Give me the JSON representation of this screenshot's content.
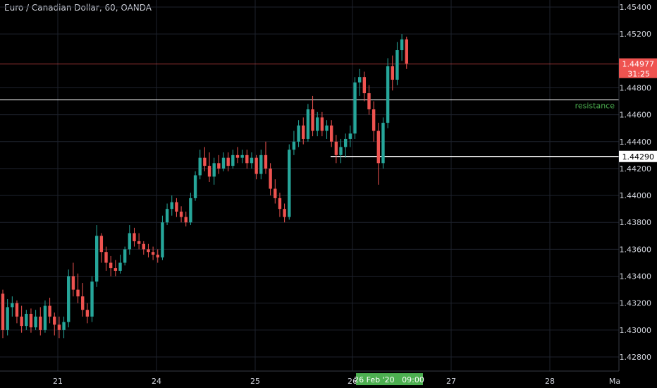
{
  "title": "Euro / Canadian Dollar, 60, OANDA",
  "current_price_label": "1.44977",
  "countdown_label": "31:25",
  "crosshair_price_label": "1.44290",
  "crosshair_time_label": "26 Feb '20   09:00",
  "resistance_label": "resistance",
  "colors": {
    "up": "#26a69a",
    "down": "#ef5350",
    "grid": "#1e222d",
    "price_line": "#ef5350",
    "crosshair_time_bg": "#4caf50"
  },
  "chart_data": {
    "type": "candlestick",
    "y_ticks": [
      "1.45400",
      "1.45200",
      "1.44800",
      "1.44600",
      "1.44400",
      "1.44200",
      "1.44000",
      "1.43800",
      "1.43600",
      "1.43400",
      "1.43200",
      "1.43000",
      "1.42800"
    ],
    "x_ticks": [
      "21",
      "24",
      "25",
      "26",
      "27",
      "28",
      "Ma"
    ],
    "ylim": [
      1.4272,
      1.4551
    ],
    "resistance_level": 1.4471,
    "current_price": 1.44977,
    "crosshair_price": 1.4429,
    "grid": true,
    "candles": [
      [
        1.4327,
        1.433,
        1.4294,
        1.43
      ],
      [
        1.43,
        1.4323,
        1.4296,
        1.4317
      ],
      [
        1.4317,
        1.4325,
        1.431,
        1.432
      ],
      [
        1.432,
        1.4322,
        1.4305,
        1.431
      ],
      [
        1.431,
        1.4318,
        1.4298,
        1.4303
      ],
      [
        1.4303,
        1.4315,
        1.43,
        1.4312
      ],
      [
        1.4312,
        1.4316,
        1.4298,
        1.4302
      ],
      [
        1.4302,
        1.4315,
        1.43,
        1.431
      ],
      [
        1.431,
        1.4317,
        1.4296,
        1.43
      ],
      [
        1.43,
        1.4322,
        1.4298,
        1.4318
      ],
      [
        1.4318,
        1.4324,
        1.4305,
        1.431
      ],
      [
        1.431,
        1.4313,
        1.4296,
        1.4304
      ],
      [
        1.4304,
        1.431,
        1.4294,
        1.43
      ],
      [
        1.43,
        1.431,
        1.4294,
        1.4306
      ],
      [
        1.4306,
        1.4345,
        1.4302,
        1.434
      ],
      [
        1.434,
        1.435,
        1.4325,
        1.433
      ],
      [
        1.433,
        1.4342,
        1.432,
        1.4325
      ],
      [
        1.4325,
        1.4335,
        1.431,
        1.4315
      ],
      [
        1.4315,
        1.432,
        1.4305,
        1.431
      ],
      [
        1.431,
        1.434,
        1.4306,
        1.4336
      ],
      [
        1.4336,
        1.4378,
        1.4332,
        1.437
      ],
      [
        1.437,
        1.4372,
        1.435,
        1.4358
      ],
      [
        1.4358,
        1.4362,
        1.4344,
        1.435
      ],
      [
        1.435,
        1.4355,
        1.434,
        1.4346
      ],
      [
        1.4346,
        1.4352,
        1.434,
        1.4344
      ],
      [
        1.4344,
        1.4356,
        1.4342,
        1.435
      ],
      [
        1.435,
        1.4362,
        1.4348,
        1.436
      ],
      [
        1.436,
        1.4378,
        1.4356,
        1.4372
      ],
      [
        1.4372,
        1.4376,
        1.4362,
        1.4366
      ],
      [
        1.4366,
        1.4372,
        1.436,
        1.4364
      ],
      [
        1.4364,
        1.4366,
        1.4356,
        1.436
      ],
      [
        1.436,
        1.4364,
        1.4354,
        1.4358
      ],
      [
        1.4358,
        1.4362,
        1.4352,
        1.4356
      ],
      [
        1.4356,
        1.436,
        1.435,
        1.4354
      ],
      [
        1.4354,
        1.4385,
        1.4352,
        1.438
      ],
      [
        1.438,
        1.4394,
        1.4378,
        1.439
      ],
      [
        1.439,
        1.44,
        1.4385,
        1.4395
      ],
      [
        1.4395,
        1.4398,
        1.4384,
        1.4388
      ],
      [
        1.4388,
        1.4392,
        1.438,
        1.4384
      ],
      [
        1.4384,
        1.4388,
        1.4377,
        1.438
      ],
      [
        1.438,
        1.4402,
        1.4378,
        1.4398
      ],
      [
        1.4398,
        1.4418,
        1.4396,
        1.4415
      ],
      [
        1.4415,
        1.4434,
        1.4412,
        1.4428
      ],
      [
        1.4428,
        1.4436,
        1.4418,
        1.4422
      ],
      [
        1.4422,
        1.4432,
        1.441,
        1.4414
      ],
      [
        1.4414,
        1.4428,
        1.4408,
        1.4424
      ],
      [
        1.4424,
        1.443,
        1.4416,
        1.442
      ],
      [
        1.442,
        1.4432,
        1.4418,
        1.4428
      ],
      [
        1.4428,
        1.4432,
        1.4418,
        1.4422
      ],
      [
        1.4422,
        1.4434,
        1.442,
        1.443
      ],
      [
        1.443,
        1.4436,
        1.4424,
        1.4428
      ],
      [
        1.4428,
        1.4434,
        1.4424,
        1.443
      ],
      [
        1.443,
        1.4434,
        1.442,
        1.4424
      ],
      [
        1.4424,
        1.4432,
        1.442,
        1.4428
      ],
      [
        1.4428,
        1.443,
        1.4412,
        1.4416
      ],
      [
        1.4416,
        1.4434,
        1.4412,
        1.443
      ],
      [
        1.443,
        1.444,
        1.4416,
        1.442
      ],
      [
        1.442,
        1.4424,
        1.44,
        1.4405
      ],
      [
        1.4405,
        1.4412,
        1.4394,
        1.4398
      ],
      [
        1.4398,
        1.4402,
        1.4384,
        1.439
      ],
      [
        1.439,
        1.4394,
        1.438,
        1.4384
      ],
      [
        1.4384,
        1.4438,
        1.4382,
        1.4434
      ],
      [
        1.4434,
        1.4448,
        1.443,
        1.444
      ],
      [
        1.444,
        1.4456,
        1.4436,
        1.4452
      ],
      [
        1.4452,
        1.4458,
        1.4438,
        1.4442
      ],
      [
        1.4442,
        1.4468,
        1.444,
        1.4464
      ],
      [
        1.4464,
        1.4474,
        1.4444,
        1.4448
      ],
      [
        1.4448,
        1.4462,
        1.4444,
        1.4458
      ],
      [
        1.4458,
        1.4462,
        1.4444,
        1.4448
      ],
      [
        1.4448,
        1.4456,
        1.4442,
        1.4452
      ],
      [
        1.4452,
        1.4456,
        1.4436,
        1.444
      ],
      [
        1.444,
        1.4445,
        1.4424,
        1.443
      ],
      [
        1.443,
        1.4442,
        1.4424,
        1.4436
      ],
      [
        1.4436,
        1.4446,
        1.4428,
        1.4442
      ],
      [
        1.4442,
        1.4452,
        1.4436,
        1.4446
      ],
      [
        1.4446,
        1.4488,
        1.4442,
        1.4484
      ],
      [
        1.4484,
        1.4494,
        1.4474,
        1.4488
      ],
      [
        1.4488,
        1.4492,
        1.447,
        1.4476
      ],
      [
        1.4476,
        1.4482,
        1.446,
        1.4464
      ],
      [
        1.4464,
        1.447,
        1.444,
        1.4448
      ],
      [
        1.4448,
        1.4454,
        1.4408,
        1.4424
      ],
      [
        1.4424,
        1.4458,
        1.442,
        1.4454
      ],
      [
        1.4454,
        1.4502,
        1.445,
        1.4496
      ],
      [
        1.4496,
        1.4504,
        1.4478,
        1.4486
      ],
      [
        1.4486,
        1.4514,
        1.4482,
        1.4508
      ],
      [
        1.4508,
        1.452,
        1.45,
        1.4516
      ],
      [
        1.4516,
        1.4518,
        1.4494,
        1.4498
      ]
    ]
  }
}
